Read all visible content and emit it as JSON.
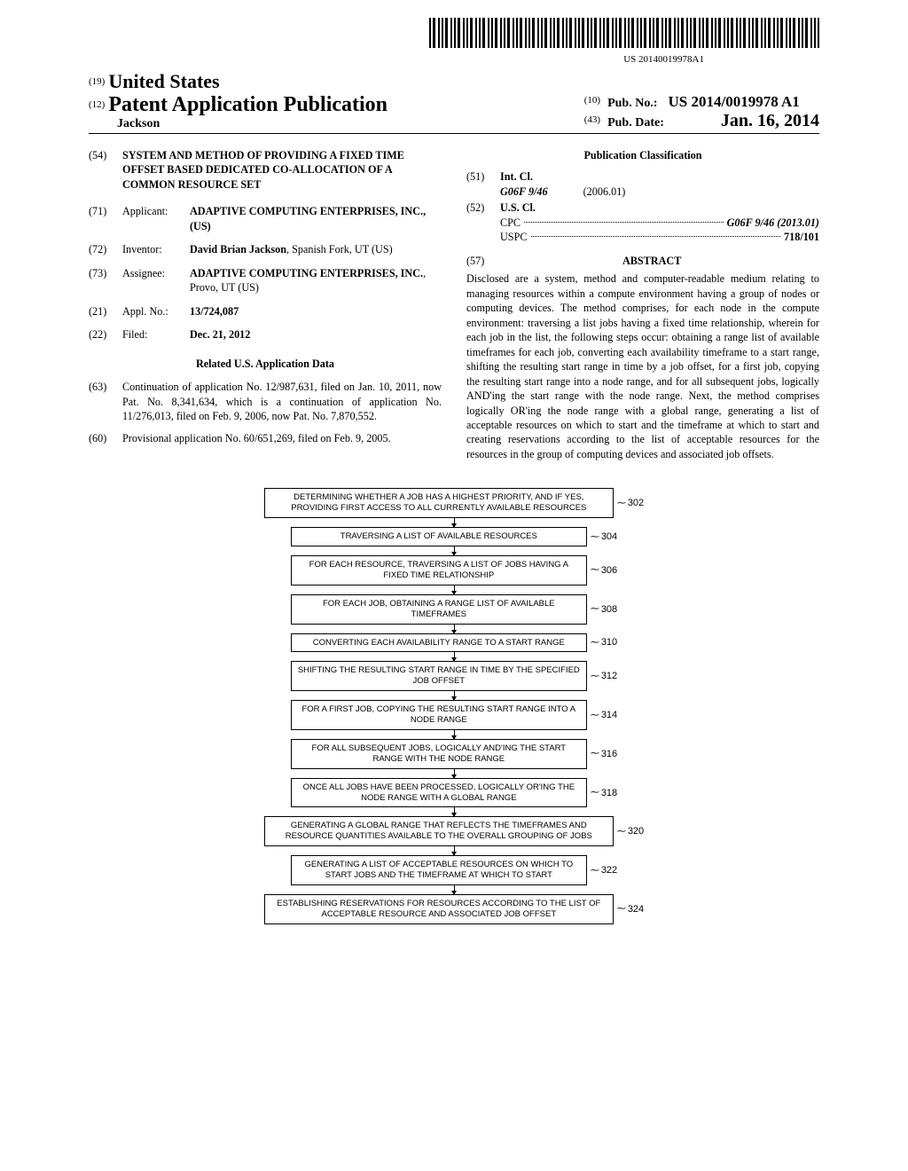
{
  "barcode_caption": "US 20140019978A1",
  "header": {
    "code_country": "(19)",
    "country": "United States",
    "code_pubtype": "(12)",
    "pubtype": "Patent Application Publication",
    "author": "Jackson",
    "code_pubno": "(10)",
    "pubno_label": "Pub. No.:",
    "pubno": "US 2014/0019978 A1",
    "code_pubdate": "(43)",
    "pubdate_label": "Pub. Date:",
    "pubdate": "Jan. 16, 2014"
  },
  "fields": {
    "title_code": "(54)",
    "title": "SYSTEM AND METHOD OF PROVIDING A FIXED TIME OFFSET BASED DEDICATED CO-ALLOCATION OF A COMMON RESOURCE SET",
    "applicant_code": "(71)",
    "applicant_label": "Applicant:",
    "applicant_value": "ADAPTIVE COMPUTING ENTERPRISES, INC., (US)",
    "inventor_code": "(72)",
    "inventor_label": "Inventor:",
    "inventor_value": "David Brian Jackson, Spanish Fork, UT (US)",
    "assignee_code": "(73)",
    "assignee_label": "Assignee:",
    "assignee_value": "ADAPTIVE COMPUTING ENTERPRISES, INC., Provo, UT (US)",
    "applno_code": "(21)",
    "applno_label": "Appl. No.:",
    "applno_value": "13/724,087",
    "filed_code": "(22)",
    "filed_label": "Filed:",
    "filed_value": "Dec. 21, 2012",
    "related_heading": "Related U.S. Application Data",
    "cont_code": "(63)",
    "cont_text": "Continuation of application No. 12/987,631, filed on Jan. 10, 2011, now Pat. No. 8,341,634, which is a continuation of application No. 11/276,013, filed on Feb. 9, 2006, now Pat. No. 7,870,552.",
    "prov_code": "(60)",
    "prov_text": "Provisional application No. 60/651,269, filed on Feb. 9, 2005."
  },
  "classification": {
    "heading": "Publication Classification",
    "intcl_code": "(51)",
    "intcl_label": "Int. Cl.",
    "intcl_symbol": "G06F 9/46",
    "intcl_date": "(2006.01)",
    "uscl_code": "(52)",
    "uscl_label": "U.S. Cl.",
    "cpc_label": "CPC",
    "cpc_value": "G06F 9/46 (2013.01)",
    "uspc_label": "USPC",
    "uspc_value": "718/101"
  },
  "abstract": {
    "code": "(57)",
    "heading": "ABSTRACT",
    "text": "Disclosed are a system, method and computer-readable medium relating to managing resources within a compute environment having a group of nodes or computing devices. The method comprises, for each node in the compute environment: traversing a list jobs having a fixed time relationship, wherein for each job in the list, the following steps occur: obtaining a range list of available timeframes for each job, converting each availability timeframe to a start range, shifting the resulting start range in time by a job offset, for a first job, copying the resulting start range into a node range, and for all subsequent jobs, logically AND'ing the start range with the node range. Next, the method comprises logically OR'ing the node range with a global range, generating a list of acceptable resources on which to start and the timeframe at which to start and creating reservations according to the list of acceptable resources for the resources in the group of computing devices and associated job offsets."
  },
  "flowchart": {
    "steps": [
      {
        "text": "DETERMINING WHETHER A JOB HAS A HIGHEST PRIORITY, AND IF YES, PROVIDING FIRST ACCESS TO ALL CURRENTLY AVAILABLE RESOURCES",
        "ref": "302",
        "wide": true
      },
      {
        "text": "TRAVERSING A LIST OF AVAILABLE RESOURCES",
        "ref": "304"
      },
      {
        "text": "FOR EACH RESOURCE, TRAVERSING A LIST OF JOBS HAVING A FIXED TIME RELATIONSHIP",
        "ref": "306"
      },
      {
        "text": "FOR EACH JOB, OBTAINING A RANGE LIST OF AVAILABLE TIMEFRAMES",
        "ref": "308"
      },
      {
        "text": "CONVERTING EACH AVAILABILITY RANGE TO A START RANGE",
        "ref": "310"
      },
      {
        "text": "SHIFTING THE RESULTING START RANGE IN TIME BY THE SPECIFIED JOB OFFSET",
        "ref": "312"
      },
      {
        "text": "FOR A FIRST JOB, COPYING THE RESULTING START RANGE  INTO A NODE RANGE",
        "ref": "314"
      },
      {
        "text": "FOR ALL SUBSEQUENT JOBS, LOGICALLY AND'ing THE START RANGE WITH THE NODE RANGE",
        "ref": "316"
      },
      {
        "text": "ONCE ALL JOBS HAVE BEEN PROCESSED, LOGICALLY OR'ing THE NODE RANGE WITH A GLOBAL RANGE",
        "ref": "318"
      },
      {
        "text": "GENERATING A GLOBAL RANGE THAT REFLECTS THE TIMEFRAMES AND RESOURCE QUANTITIES AVAILABLE TO THE OVERALL GROUPING OF JOBS",
        "ref": "320",
        "wide": true
      },
      {
        "text": "GENERATING A LIST OF ACCEPTABLE RESOURCES ON WHICH TO START JOBS AND THE TIMEFRAME AT WHICH TO START",
        "ref": "322"
      },
      {
        "text": "ESTABLISHING RESERVATIONS FOR RESOURCES ACCORDING TO THE LIST OF ACCEPTABLE RESOURCE AND ASSOCIATED JOB OFFSET",
        "ref": "324",
        "wide": true
      }
    ]
  }
}
